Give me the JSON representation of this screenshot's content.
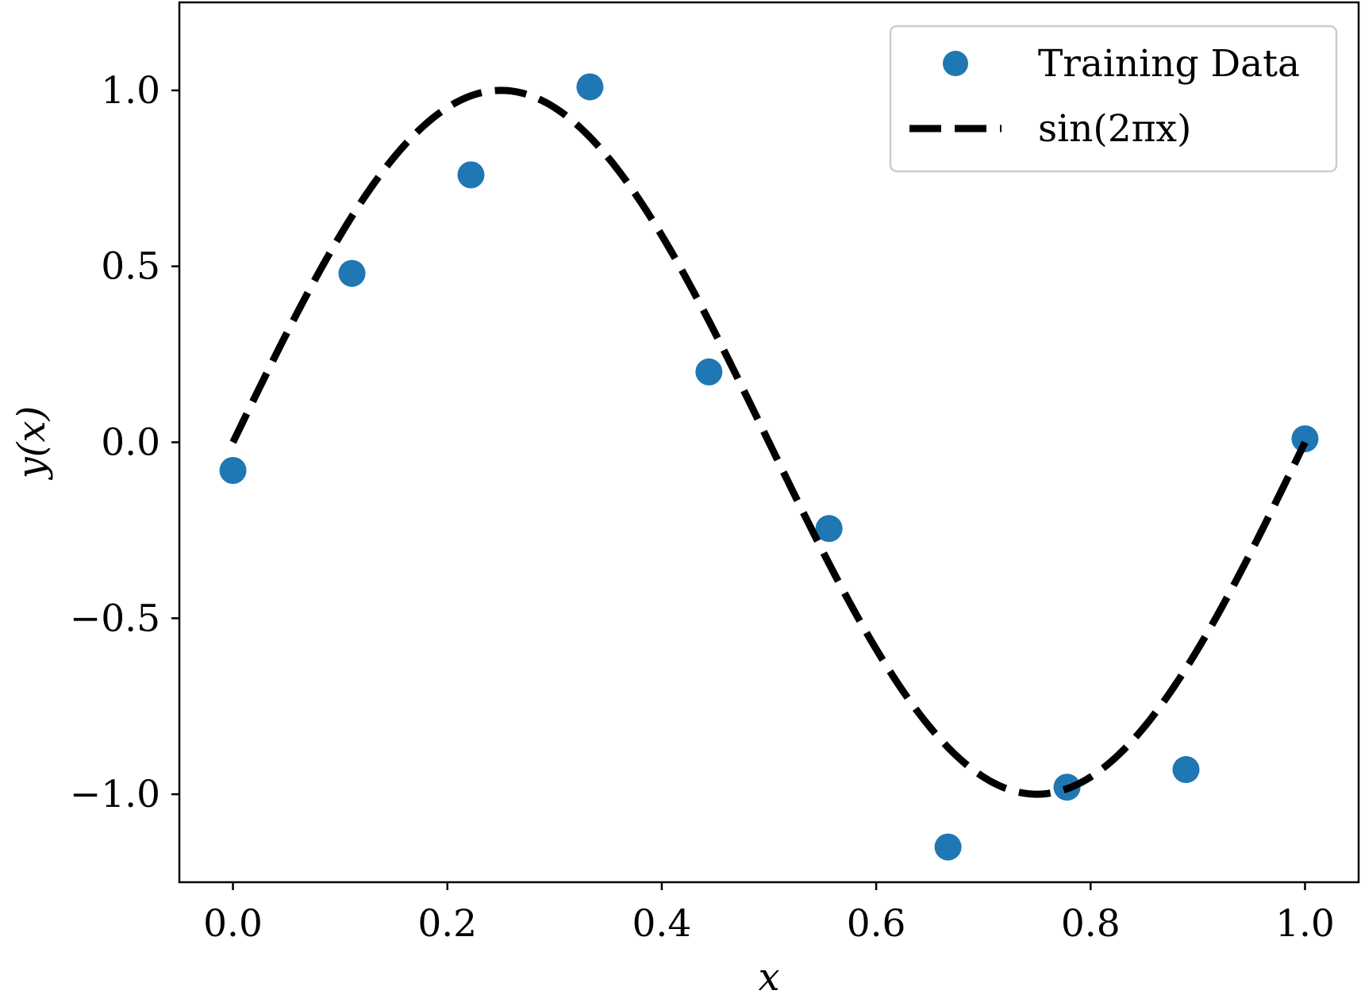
{
  "chart_data": {
    "type": "scatter",
    "xlabel": "x",
    "ylabel": "y(x)",
    "xlim": [
      -0.05,
      1.05
    ],
    "ylim": [
      -1.25,
      1.25
    ],
    "x_ticks": [
      {
        "value": 0.0,
        "label": "0.0"
      },
      {
        "value": 0.2,
        "label": "0.2"
      },
      {
        "value": 0.4,
        "label": "0.4"
      },
      {
        "value": 0.6,
        "label": "0.6"
      },
      {
        "value": 0.8,
        "label": "0.8"
      },
      {
        "value": 1.0,
        "label": "1.0"
      }
    ],
    "y_ticks": [
      {
        "value": 1.0,
        "label": "1.0"
      },
      {
        "value": 0.5,
        "label": "0.5"
      },
      {
        "value": 0.0,
        "label": "0.0"
      },
      {
        "value": -0.5,
        "label": "−0.5"
      },
      {
        "value": -1.0,
        "label": "−1.0"
      }
    ],
    "grid": false,
    "legend_position": "top-right",
    "series": [
      {
        "name": "Training Data",
        "type": "scatter",
        "color": "#1f77b4",
        "points": [
          {
            "x": 0.0,
            "y": -0.08
          },
          {
            "x": 0.111,
            "y": 0.48
          },
          {
            "x": 0.222,
            "y": 0.76
          },
          {
            "x": 0.333,
            "y": 1.01
          },
          {
            "x": 0.444,
            "y": 0.2
          },
          {
            "x": 0.556,
            "y": -0.245
          },
          {
            "x": 0.667,
            "y": -1.15
          },
          {
            "x": 0.778,
            "y": -0.98
          },
          {
            "x": 0.889,
            "y": -0.93
          },
          {
            "x": 1.0,
            "y": 0.01
          }
        ]
      },
      {
        "name": "sin(2πx)",
        "type": "line",
        "style": "dashed",
        "color": "#000000",
        "function": "sin(2*pi*x)",
        "domain": [
          0.0,
          1.0
        ]
      }
    ]
  }
}
